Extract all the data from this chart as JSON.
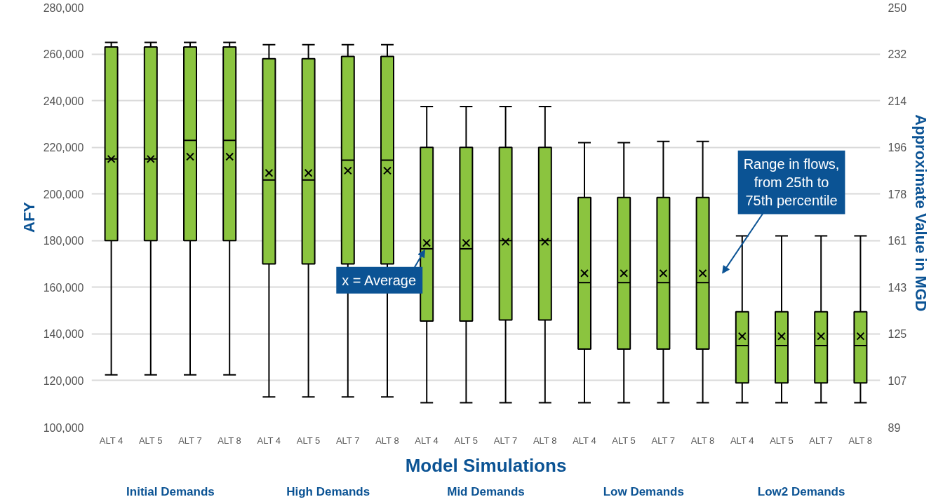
{
  "chart_data": {
    "type": "box",
    "xlabel": "Model Simulations",
    "ylabel": "AFY",
    "y2label": "Approximate  Value in  MGD",
    "categories": [
      "ALT 4",
      "ALT 5",
      "ALT 7",
      "ALT 8",
      "ALT 4",
      "ALT 5",
      "ALT 7",
      "ALT 8",
      "ALT 4",
      "ALT 5",
      "ALT 7",
      "ALT 8",
      "ALT 4",
      "ALT 5",
      "ALT 7",
      "ALT 8",
      "ALT 4",
      "ALT 5",
      "ALT 7",
      "ALT 8"
    ],
    "boxes": [
      {
        "low": 122500,
        "q1": 180000,
        "median": 215000,
        "q3": 263000,
        "high": 265000,
        "mean": 215000
      },
      {
        "low": 122500,
        "q1": 180000,
        "median": 215000,
        "q3": 263000,
        "high": 265000,
        "mean": 215000
      },
      {
        "low": 122500,
        "q1": 180000,
        "median": 223000,
        "q3": 263000,
        "high": 265000,
        "mean": 216000
      },
      {
        "low": 122500,
        "q1": 180000,
        "median": 223000,
        "q3": 263000,
        "high": 265000,
        "mean": 216000
      },
      {
        "low": 113000,
        "q1": 170000,
        "median": 206000,
        "q3": 258000,
        "high": 264000,
        "mean": 209000
      },
      {
        "low": 113000,
        "q1": 170000,
        "median": 206000,
        "q3": 258000,
        "high": 264000,
        "mean": 209000
      },
      {
        "low": 113000,
        "q1": 170000,
        "median": 214500,
        "q3": 259000,
        "high": 264000,
        "mean": 210000
      },
      {
        "low": 113000,
        "q1": 170000,
        "median": 214500,
        "q3": 259000,
        "high": 264000,
        "mean": 210000
      },
      {
        "low": 110500,
        "q1": 145500,
        "median": 176500,
        "q3": 220000,
        "high": 237500,
        "mean": 179000
      },
      {
        "low": 110500,
        "q1": 145500,
        "median": 176500,
        "q3": 220000,
        "high": 237500,
        "mean": 179000
      },
      {
        "low": 110500,
        "q1": 146000,
        "median": 180000,
        "q3": 220000,
        "high": 237500,
        "mean": 179500
      },
      {
        "low": 110500,
        "q1": 146000,
        "median": 180000,
        "q3": 220000,
        "high": 237500,
        "mean": 179500
      },
      {
        "low": 110500,
        "q1": 133500,
        "median": 162000,
        "q3": 198500,
        "high": 222000,
        "mean": 166000
      },
      {
        "low": 110500,
        "q1": 133500,
        "median": 162000,
        "q3": 198500,
        "high": 222000,
        "mean": 166000
      },
      {
        "low": 110500,
        "q1": 133500,
        "median": 162000,
        "q3": 198500,
        "high": 222500,
        "mean": 166000
      },
      {
        "low": 110500,
        "q1": 133500,
        "median": 162000,
        "q3": 198500,
        "high": 222500,
        "mean": 166000
      },
      {
        "low": 110500,
        "q1": 119000,
        "median": 135000,
        "q3": 149500,
        "high": 182000,
        "mean": 139000
      },
      {
        "low": 110500,
        "q1": 119000,
        "median": 135000,
        "q3": 149500,
        "high": 182000,
        "mean": 139000
      },
      {
        "low": 110500,
        "q1": 119000,
        "median": 135000,
        "q3": 149500,
        "high": 182000,
        "mean": 139000
      },
      {
        "low": 110500,
        "q1": 119000,
        "median": 135000,
        "q3": 149500,
        "high": 182000,
        "mean": 139000
      }
    ],
    "color": "#8bc43f",
    "ylim": [
      100000,
      280000
    ],
    "yticks": [
      {
        "value": 100000,
        "label": "100,000"
      },
      {
        "value": 120000,
        "label": "120,000"
      },
      {
        "value": 140000,
        "label": "140,000"
      },
      {
        "value": 160000,
        "label": "160,000"
      },
      {
        "value": 180000,
        "label": "180,000"
      },
      {
        "value": 200000,
        "label": "200,000"
      },
      {
        "value": 220000,
        "label": "220,000"
      },
      {
        "value": 240000,
        "label": "240,000"
      },
      {
        "value": 260000,
        "label": "260,000"
      },
      {
        "value": 280000,
        "label": "280,000"
      }
    ],
    "y2lim": [
      89,
      250
    ],
    "y2ticks": [
      {
        "value": 89,
        "label": "89"
      },
      {
        "value": 106.89,
        "label": "107"
      },
      {
        "value": 124.78,
        "label": "125"
      },
      {
        "value": 142.67,
        "label": "143"
      },
      {
        "value": 160.56,
        "label": "161"
      },
      {
        "value": 178.44,
        "label": "178"
      },
      {
        "value": 196.33,
        "label": "196"
      },
      {
        "value": 214.22,
        "label": "214"
      },
      {
        "value": 232.11,
        "label": "232"
      },
      {
        "value": 250,
        "label": "250"
      }
    ],
    "grid": "y",
    "annotations": [
      "Initial Demands",
      "High Demands",
      "Mid Demands",
      "Low Demands",
      "Low2 Demands",
      {
        "text": "x = Average",
        "y": 179000
      },
      "Range in flows,\nfrom 25th to\n75th percentile"
    ]
  }
}
